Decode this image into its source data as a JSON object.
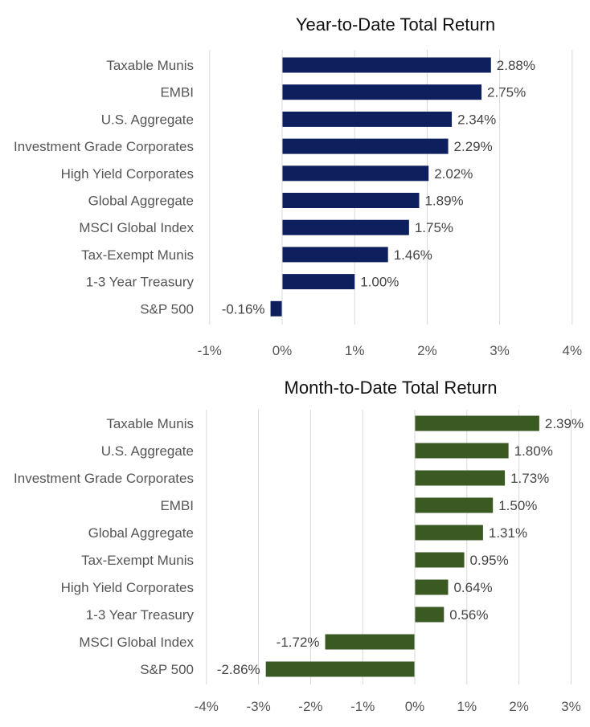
{
  "chart_data": [
    {
      "type": "bar",
      "orientation": "horizontal",
      "title": "Year-to-Date Total Return",
      "categories": [
        "Taxable Munis",
        "EMBI",
        "U.S. Aggregate",
        "Investment Grade Corporates",
        "High Yield Corporates",
        "Global Aggregate",
        "MSCI Global Index",
        "Tax-Exempt Munis",
        "1-3 Year Treasury",
        "S&P 500"
      ],
      "values": [
        2.88,
        2.75,
        2.34,
        2.29,
        2.02,
        1.89,
        1.75,
        1.46,
        1.0,
        -0.16
      ],
      "data_labels": [
        "2.88%",
        "2.75%",
        "2.34%",
        "2.29%",
        "2.02%",
        "1.89%",
        "1.75%",
        "1.46%",
        "1.00%",
        "-0.16%"
      ],
      "xlim": [
        -1,
        4
      ],
      "ticks": [
        -1,
        0,
        1,
        2,
        3,
        4
      ],
      "tick_labels": [
        "-1%",
        "0%",
        "1%",
        "2%",
        "3%",
        "4%"
      ],
      "color": "#0d1f5c",
      "grid": true,
      "legend": "none"
    },
    {
      "type": "bar",
      "orientation": "horizontal",
      "title": "Month-to-Date Total Return",
      "categories": [
        "Taxable Munis",
        "U.S. Aggregate",
        "Investment Grade Corporates",
        "EMBI",
        "Global Aggregate",
        "Tax-Exempt Munis",
        "High Yield Corporates",
        "1-3 Year Treasury",
        "MSCI Global Index",
        "S&P 500"
      ],
      "values": [
        2.39,
        1.8,
        1.73,
        1.5,
        1.31,
        0.95,
        0.64,
        0.56,
        -1.72,
        -2.86
      ],
      "data_labels": [
        "2.39%",
        "1.80%",
        "1.73%",
        "1.50%",
        "1.31%",
        "0.95%",
        "0.64%",
        "0.56%",
        "-1.72%",
        "-2.86%"
      ],
      "xlim": [
        -4,
        3
      ],
      "ticks": [
        -4,
        -3,
        -2,
        -1,
        0,
        1,
        2,
        3
      ],
      "tick_labels": [
        "-4%",
        "-3%",
        "-2%",
        "-1%",
        "0%",
        "1%",
        "2%",
        "3%"
      ],
      "color": "#3b5a22",
      "grid": true,
      "legend": "none"
    }
  ]
}
